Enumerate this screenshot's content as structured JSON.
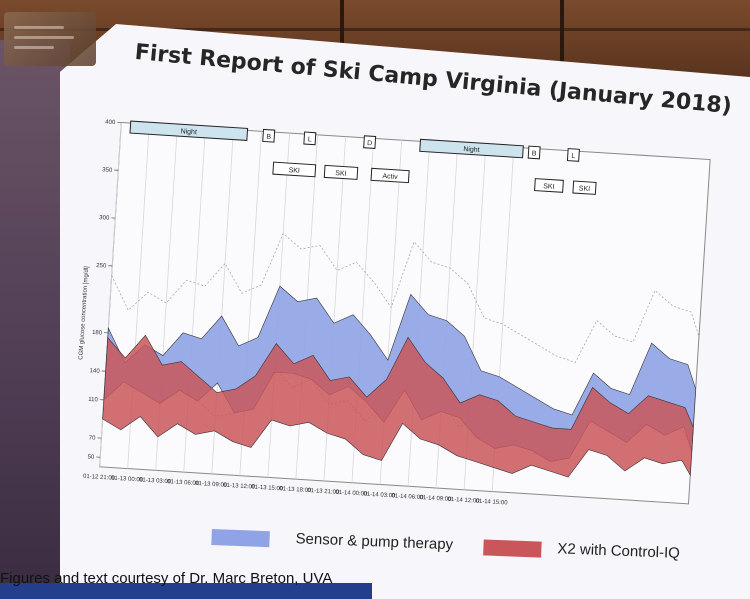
{
  "slide": {
    "title": "First Report of Ski Camp Virginia (January 2018)",
    "credit": "Figures and text courtesy of Dr. Marc Breton, UVA"
  },
  "logo": {
    "lines": [
      "",
      "",
      ""
    ]
  },
  "legend": [
    {
      "label": "Sensor & pump therapy",
      "color": "#8fa3e6"
    },
    {
      "label": "X2 with Control-IQ",
      "color": "#c9565a"
    }
  ],
  "chart_data": {
    "type": "area",
    "title": "",
    "ylabel": "CGM glucose concentration [mg/dl]",
    "xlabel": "",
    "ylim": [
      40,
      400
    ],
    "yticks": [
      50,
      70,
      110,
      140,
      180,
      250,
      300,
      350,
      400
    ],
    "xlim": [
      0,
      63
    ],
    "xticks": [
      {
        "x": 0,
        "label": "01-12 21:00"
      },
      {
        "x": 3,
        "label": "01-13 00:00"
      },
      {
        "x": 6,
        "label": "01-13 03:00"
      },
      {
        "x": 9,
        "label": "01-13 06:00"
      },
      {
        "x": 12,
        "label": "01-13 09:00"
      },
      {
        "x": 15,
        "label": "01-13 12:00"
      },
      {
        "x": 18,
        "label": "01-13 15:00"
      },
      {
        "x": 21,
        "label": "01-13 18:00"
      },
      {
        "x": 24,
        "label": "01-13 21:00"
      },
      {
        "x": 27,
        "label": "01-14 00:00"
      },
      {
        "x": 30,
        "label": "01-14 03:00"
      },
      {
        "x": 33,
        "label": "01-14 06:00"
      },
      {
        "x": 36,
        "label": "01-14 09:00"
      },
      {
        "x": 39,
        "label": "01-14 12:00"
      },
      {
        "x": 42,
        "label": "01-14 15:00"
      }
    ],
    "activities": [
      {
        "label": "Night",
        "x0": 1,
        "x1": 13.5,
        "row": 0
      },
      {
        "label": "B",
        "x0": 15.2,
        "x1": 16.4,
        "row": 0
      },
      {
        "label": "SKI",
        "x0": 16.5,
        "x1": 21,
        "row": 1
      },
      {
        "label": "L",
        "x0": 19.6,
        "x1": 20.8,
        "row": 0
      },
      {
        "label": "SKI",
        "x0": 22,
        "x1": 25.5,
        "row": 1
      },
      {
        "label": "D",
        "x0": 26,
        "x1": 27.2,
        "row": 0
      },
      {
        "label": "Activ",
        "x0": 27,
        "x1": 31,
        "row": 1
      },
      {
        "label": "Night",
        "x0": 32,
        "x1": 43,
        "row": 0
      },
      {
        "label": "B",
        "x0": 43.6,
        "x1": 44.8,
        "row": 0
      },
      {
        "label": "SKI",
        "x0": 44.5,
        "x1": 47.5,
        "row": 1
      },
      {
        "label": "L",
        "x0": 47.8,
        "x1": 49,
        "row": 0
      },
      {
        "label": "SKI",
        "x0": 48.6,
        "x1": 51,
        "row": 1
      }
    ],
    "series": [
      {
        "name": "Sensor & pump therapy",
        "color": "#8fa3e6",
        "x": [
          0,
          2,
          4,
          6,
          8,
          10,
          12,
          14,
          16,
          18,
          20,
          22,
          24,
          26,
          28,
          30,
          32,
          34,
          36,
          38,
          40,
          42,
          44,
          46,
          48,
          50,
          52,
          54,
          56,
          58,
          60,
          62,
          63
        ],
        "upper": [
          185,
          150,
          170,
          160,
          185,
          180,
          205,
          175,
          185,
          240,
          225,
          230,
          205,
          215,
          195,
          170,
          240,
          220,
          215,
          200,
          165,
          160,
          150,
          140,
          130,
          125,
          170,
          155,
          150,
          205,
          190,
          185,
          160
        ],
        "lower": [
          110,
          130,
          120,
          110,
          125,
          115,
          135,
          105,
          110,
          150,
          150,
          145,
          130,
          140,
          125,
          105,
          140,
          110,
          120,
          115,
          95,
          85,
          90,
          85,
          75,
          80,
          120,
          110,
          100,
          120,
          110,
          120,
          95
        ]
      },
      {
        "name": "X2 with Control-IQ",
        "color": "#c9565a",
        "x": [
          0,
          2,
          4,
          6,
          8,
          10,
          12,
          14,
          16,
          18,
          20,
          22,
          24,
          26,
          28,
          30,
          32,
          34,
          36,
          38,
          40,
          42,
          44,
          46,
          48,
          50,
          52,
          54,
          56,
          58,
          60,
          62,
          63
        ],
        "upper": [
          175,
          155,
          180,
          150,
          155,
          140,
          125,
          130,
          145,
          180,
          160,
          170,
          145,
          150,
          130,
          150,
          195,
          170,
          155,
          130,
          140,
          135,
          120,
          115,
          110,
          110,
          155,
          140,
          130,
          150,
          145,
          140,
          120
        ],
        "lower": [
          90,
          80,
          95,
          75,
          90,
          80,
          85,
          75,
          70,
          100,
          95,
          100,
          90,
          85,
          70,
          65,
          105,
          90,
          85,
          75,
          70,
          65,
          60,
          70,
          65,
          60,
          90,
          85,
          70,
          85,
          80,
          85,
          70
        ]
      }
    ],
    "grid": true,
    "legend_position": "bottom"
  }
}
